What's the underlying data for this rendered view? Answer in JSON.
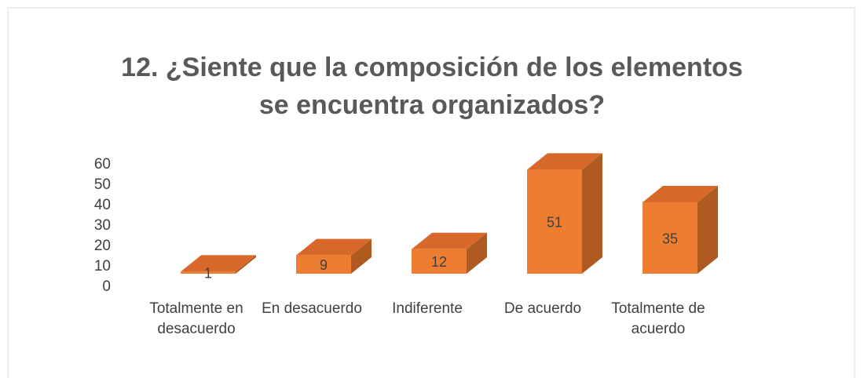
{
  "chart_data": {
    "type": "bar3d",
    "title": "12. ¿Siente que la composición de los elementos se encuentra organizados?",
    "categories": [
      "Totalmente en desacuerdo",
      "En desacuerdo",
      "Indiferente",
      "De acuerdo",
      "Totalmente de acuerdo"
    ],
    "values": [
      1,
      9,
      12,
      51,
      35
    ],
    "color": "#ed7d31",
    "ylim": [
      0,
      60
    ],
    "yticks": [
      0,
      10,
      20,
      30,
      40,
      50,
      60
    ],
    "grid": false
  }
}
